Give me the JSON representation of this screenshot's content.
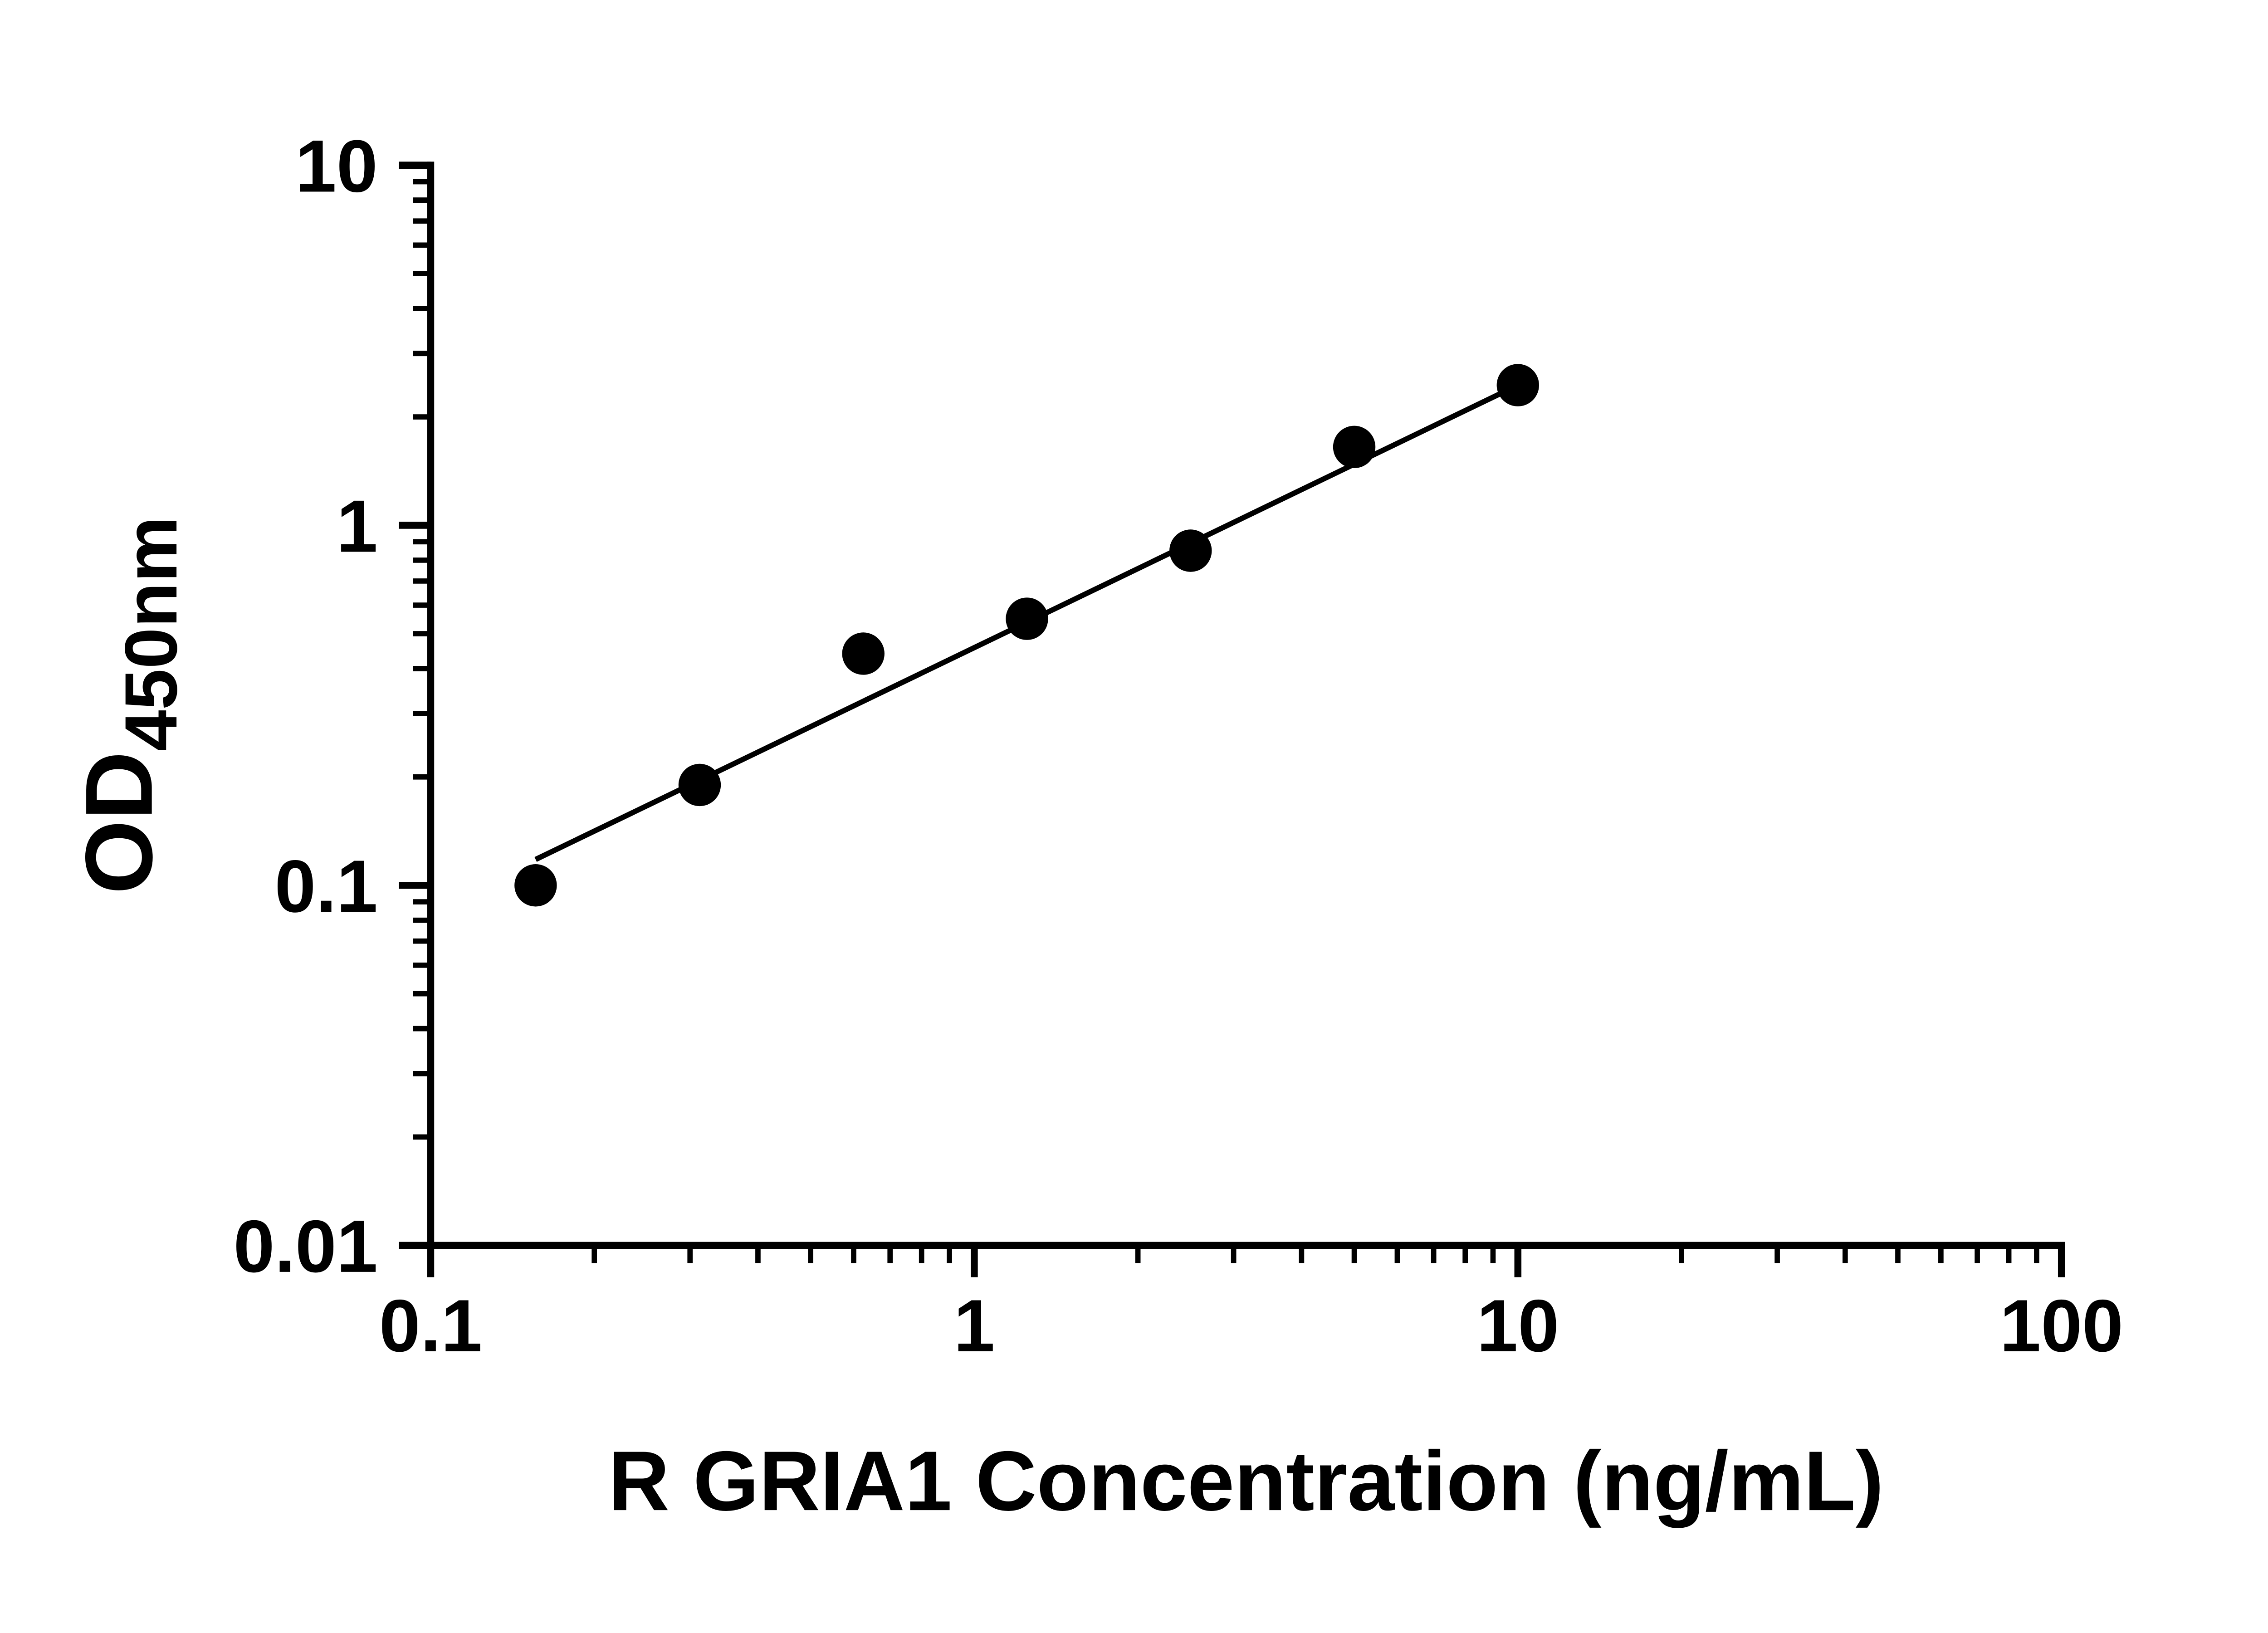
{
  "chart_data": {
    "type": "scatter",
    "title": "",
    "xlabel": "R GRIA1 Concentration (ng/mL)",
    "ylabel": "OD450nm",
    "ylabel_main": "OD",
    "ylabel_sub": "450nm",
    "x_scale": "log10",
    "y_scale": "log10",
    "xlim": [
      0.1,
      100
    ],
    "ylim": [
      0.01,
      10
    ],
    "x_tick_values": [
      0.1,
      1,
      10,
      100
    ],
    "x_tick_labels": [
      "0.1",
      "1",
      "10",
      "100"
    ],
    "y_tick_values": [
      0.01,
      0.1,
      1,
      10
    ],
    "y_tick_labels": [
      "0.01",
      "0.1",
      "1",
      "10"
    ],
    "grid": false,
    "legend": "none",
    "axis_color": "#000000",
    "point_color": "#000000",
    "line_color": "#000000",
    "series": [
      {
        "name": "standards",
        "type": "scatter",
        "marker": "circle",
        "x": [
          0.156,
          0.3125,
          0.625,
          1.25,
          2.5,
          5,
          10
        ],
        "y": [
          0.1,
          0.19,
          0.44,
          0.55,
          0.85,
          1.65,
          2.45
        ]
      },
      {
        "name": "fit-line",
        "type": "line",
        "x": [
          0.156,
          10
        ],
        "y": [
          0.118,
          2.45
        ]
      }
    ]
  }
}
